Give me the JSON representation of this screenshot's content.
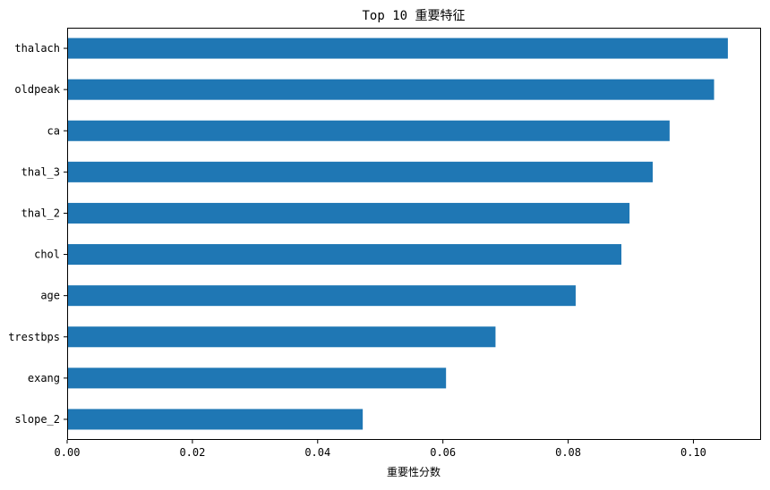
{
  "chart_data": {
    "type": "bar",
    "orientation": "horizontal",
    "title": "Top 10 重要特征",
    "xlabel": "重要性分数",
    "ylabel": "",
    "categories": [
      "thalach",
      "oldpeak",
      "ca",
      "thal_3",
      "thal_2",
      "chol",
      "age",
      "trestbps",
      "exang",
      "slope_2"
    ],
    "values": [
      0.1055,
      0.1033,
      0.0962,
      0.0935,
      0.0898,
      0.0885,
      0.0812,
      0.0684,
      0.0605,
      0.0472
    ],
    "xlim": [
      0.0,
      0.1108
    ],
    "xticks": [
      0.0,
      0.02,
      0.04,
      0.06,
      0.08,
      0.1
    ],
    "xtick_labels": [
      "0.00",
      "0.02",
      "0.04",
      "0.06",
      "0.08",
      "0.10"
    ],
    "grid": false,
    "legend": "none",
    "bar_color": "#1f77b4"
  }
}
